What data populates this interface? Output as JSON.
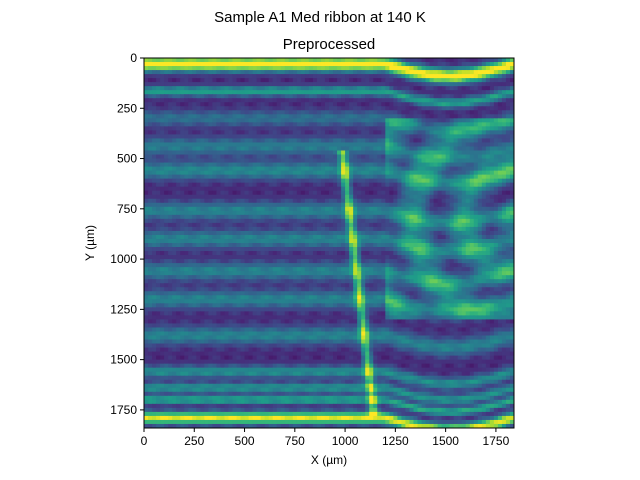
{
  "figure": {
    "suptitle": "Sample A1 Med ribbon at 140 K",
    "title": "Preprocessed"
  },
  "chart_data": {
    "type": "heatmap",
    "colormap": "viridis",
    "colormap_stops": [
      "#440154",
      "#482878",
      "#3e4a89",
      "#31688e",
      "#26828e",
      "#1f9e89",
      "#35b779",
      "#6ece58",
      "#b5de2b",
      "#fde725"
    ],
    "title": "Preprocessed",
    "suptitle": "Sample A1 Med ribbon at 140 K",
    "xlabel": "X (µm)",
    "ylabel": "Y (µm)",
    "xlim": [
      0,
      1840
    ],
    "ylim": [
      1840,
      0
    ],
    "y_inverted": true,
    "xticks": [
      0,
      250,
      500,
      750,
      1000,
      1250,
      1500,
      1750
    ],
    "yticks": [
      0,
      250,
      500,
      750,
      1000,
      1250,
      1500,
      1750
    ],
    "xtick_labels": [
      "0",
      "250",
      "500",
      "750",
      "1000",
      "1250",
      "1500",
      "1750"
    ],
    "ytick_labels": [
      "0",
      "250",
      "500",
      "750",
      "1000",
      "1250",
      "1500",
      "1750"
    ],
    "grid": false,
    "background_level": 0.12,
    "horizontal_bands": [
      {
        "y": 30,
        "intensity": 0.95,
        "width": 35
      },
      {
        "y": 165,
        "intensity": 0.45,
        "width": 25
      },
      {
        "y": 300,
        "intensity": 0.25,
        "width": 40
      },
      {
        "y": 440,
        "intensity": 0.3,
        "width": 45
      },
      {
        "y": 560,
        "intensity": 0.35,
        "width": 45
      },
      {
        "y": 760,
        "intensity": 0.33,
        "width": 45
      },
      {
        "y": 900,
        "intensity": 0.33,
        "width": 45
      },
      {
        "y": 1060,
        "intensity": 0.33,
        "width": 45
      },
      {
        "y": 1200,
        "intensity": 0.33,
        "width": 45
      },
      {
        "y": 1380,
        "intensity": 0.33,
        "width": 45
      },
      {
        "y": 1560,
        "intensity": 0.38,
        "width": 30
      },
      {
        "y": 1640,
        "intensity": 0.4,
        "width": 25
      },
      {
        "y": 1700,
        "intensity": 0.5,
        "width": 20
      },
      {
        "y": 1790,
        "intensity": 0.85,
        "width": 30
      }
    ],
    "features": [
      {
        "kind": "diagonal-streak",
        "x_start": 990,
        "y_start": 500,
        "x_end": 1140,
        "y_end": 1750,
        "intensity": 0.55
      },
      {
        "kind": "arc-fringes",
        "x_range": [
          1200,
          1840
        ],
        "y_range": [
          300,
          1300
        ],
        "intensity": 0.3
      }
    ]
  }
}
